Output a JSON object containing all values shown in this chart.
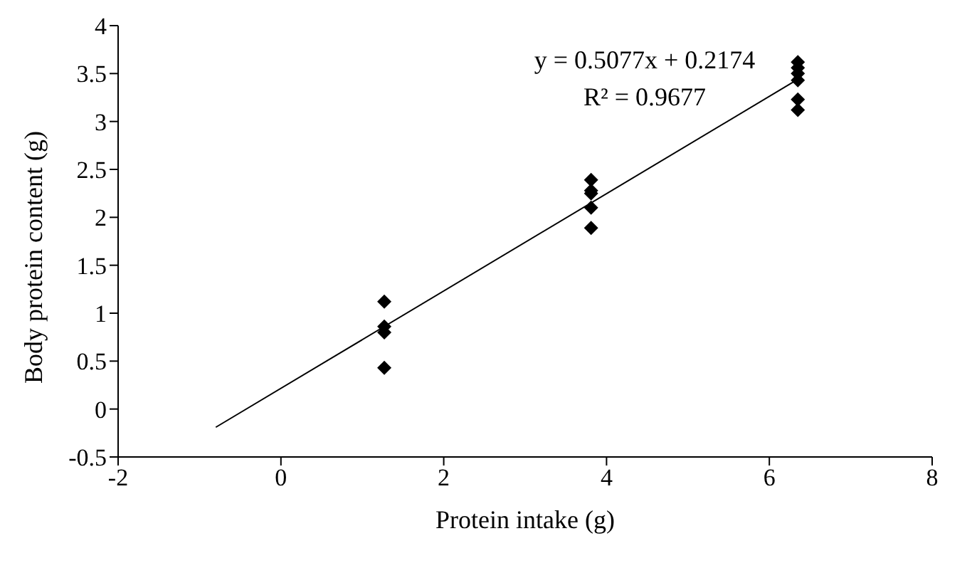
{
  "chart_data": {
    "type": "scatter",
    "xlabel": "Protein intake (g)",
    "ylabel": "Body protein content (g)",
    "xlim": [
      -2,
      8
    ],
    "xticks": [
      -2,
      0,
      2,
      4,
      6,
      8
    ],
    "ylim": [
      -0.5,
      4
    ],
    "yticks": [
      -0.5,
      0,
      0.5,
      1,
      1.5,
      2,
      2.5,
      3,
      3.5,
      4
    ],
    "marker": "diamond",
    "grid": false,
    "annotations": [
      "y = 0.5077x + 0.2174",
      "R² = 0.9677"
    ],
    "series": [
      {
        "color": "#000000",
        "x": [
          1.27,
          1.27,
          1.27,
          1.27,
          3.81,
          3.81,
          3.81,
          3.81,
          3.81,
          6.35,
          6.35,
          6.35,
          6.35,
          6.35,
          6.35
        ],
        "values": [
          1.12,
          0.86,
          0.8,
          0.43,
          2.39,
          2.28,
          2.25,
          2.1,
          1.89,
          3.62,
          3.56,
          3.5,
          3.43,
          3.23,
          3.12
        ]
      },
      {
        "type": "line",
        "color": "#000000",
        "marker": "none",
        "x": [
          -0.8,
          6.35
        ],
        "values": [
          -0.19,
          3.44
        ]
      }
    ]
  }
}
